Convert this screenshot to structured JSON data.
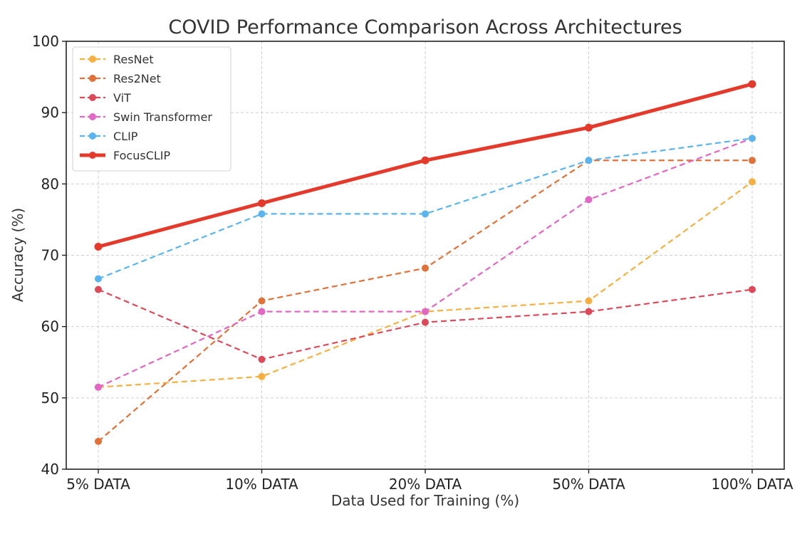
{
  "chart_data": {
    "type": "line",
    "title": "COVID Performance Comparison Across Architectures",
    "xlabel": "Data Used for Training (%)",
    "ylabel": "Accuracy (%)",
    "categories": [
      "5% DATA",
      "10% DATA",
      "20% DATA",
      "50% DATA",
      "100% DATA"
    ],
    "ylim": [
      40,
      100
    ],
    "yticks": [
      40,
      50,
      60,
      70,
      80,
      90,
      100
    ],
    "grid": true,
    "legend_position": "top-left",
    "series": [
      {
        "name": "ResNet",
        "color": "#f5b041",
        "style": "dashed",
        "values": [
          51.5,
          53.0,
          62.1,
          63.6,
          80.3
        ]
      },
      {
        "name": "Res2Net",
        "color": "#e07139",
        "style": "dashed",
        "values": [
          43.9,
          63.6,
          68.2,
          83.3,
          83.3
        ]
      },
      {
        "name": "ViT",
        "color": "#dc4a5a",
        "style": "dashed",
        "values": [
          65.2,
          55.4,
          60.6,
          62.1,
          65.2
        ]
      },
      {
        "name": "Swin Transformer",
        "color": "#e266c3",
        "style": "dashed",
        "values": [
          51.5,
          62.1,
          62.1,
          77.8,
          86.4
        ]
      },
      {
        "name": "CLIP",
        "color": "#5ab4ee",
        "style": "dashed",
        "values": [
          66.7,
          75.8,
          75.8,
          83.3,
          86.4
        ]
      },
      {
        "name": "FocusCLIP",
        "color": "#e33a2c",
        "style": "solid",
        "values": [
          71.2,
          77.3,
          83.3,
          87.9,
          94.0
        ]
      }
    ]
  }
}
